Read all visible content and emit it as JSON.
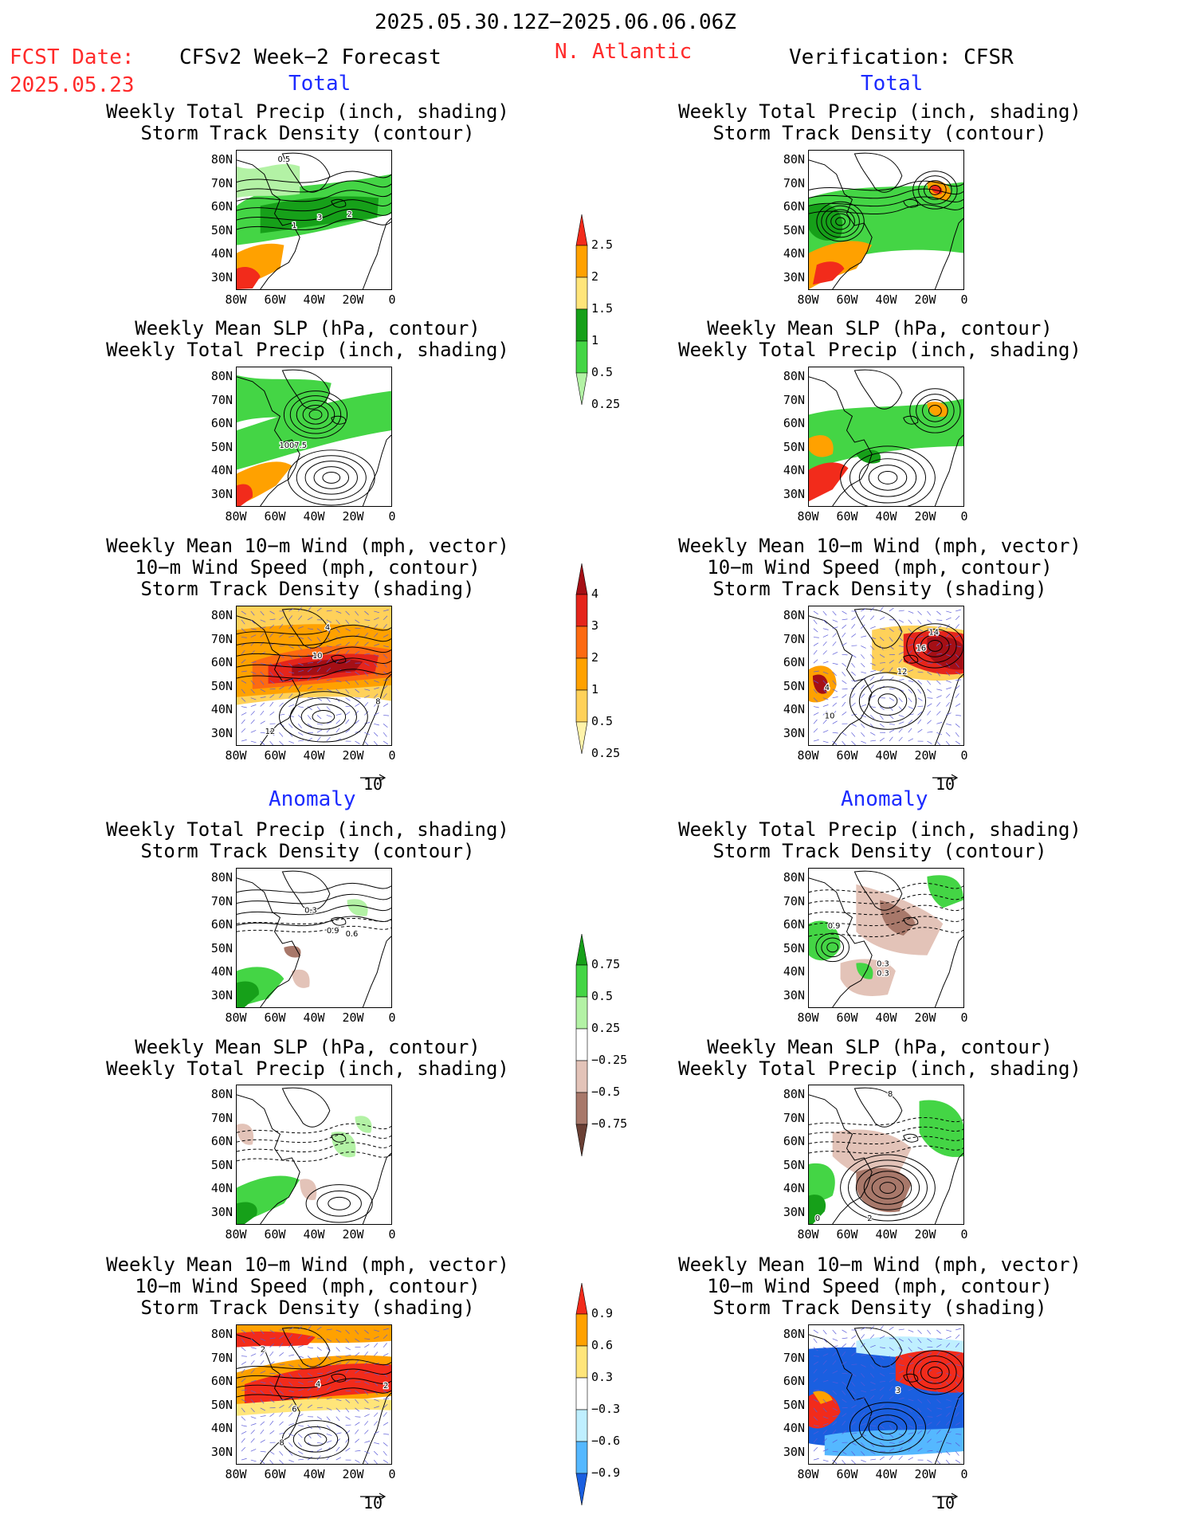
{
  "header": {
    "period": "2025.05.30.12Z−2025.06.06.06Z",
    "fcst_date_label": "FCST Date:",
    "fcst_date": "2025.05.23",
    "model": "CFSv2 Week−2 Forecast",
    "region": "N. Atlantic",
    "verification": "Verification: CFSR"
  },
  "sections": {
    "total": "Total",
    "anomaly": "Anomaly"
  },
  "titles": {
    "precip_track": [
      "Weekly Total Precip (inch, shading)",
      "Storm Track Density (contour)"
    ],
    "slp_precip": [
      "Weekly Mean SLP (hPa, contour)",
      "Weekly Total Precip (inch, shading)"
    ],
    "wind_track": [
      "Weekly Mean 10−m Wind (mph, vector)",
      "10−m Wind Speed (mph, contour)",
      "Storm Track Density (shading)"
    ]
  },
  "axes": {
    "lat_ticks": [
      "80N",
      "70N",
      "60N",
      "50N",
      "40N",
      "30N"
    ],
    "lon_ticks": [
      "80W",
      "60W",
      "40W",
      "20W",
      "0"
    ]
  },
  "vector_ref": "10",
  "map_labels": {
    "fc_total_precip": [
      "0.5",
      "3",
      "2",
      "1"
    ],
    "fc_total_slp": [
      "1007.5"
    ],
    "fc_total_wind": [
      "4",
      "10",
      "8",
      "12"
    ],
    "vf_total_wind": [
      "14",
      "16",
      "12",
      "4",
      "10"
    ],
    "fc_anom_precip": [
      "0.3",
      "0.9",
      "0.6"
    ],
    "vf_anom_precip": [
      "0.9",
      "0.3",
      "0.3"
    ],
    "vf_anom_slp": [
      "8",
      "0",
      "2"
    ],
    "fc_anom_wind": [
      "2",
      "4",
      "6",
      "8",
      "2"
    ],
    "vf_anom_wind": [
      "3"
    ]
  },
  "colorbars": {
    "precip_total": {
      "labels": [
        "2.5",
        "2",
        "1.5",
        "1",
        "0.5",
        "0.25"
      ],
      "colors": [
        "#f22b1b",
        "#ffa100",
        "#ffe57a",
        "#16a019",
        "#44d545",
        "#b3f2a5"
      ]
    },
    "track_total": {
      "labels": [
        "4",
        "3",
        "2",
        "1",
        "0.5",
        "0.25"
      ],
      "colors": [
        "#a50f15",
        "#e5251b",
        "#fd6a11",
        "#ffa100",
        "#ffd15a",
        "#fff3aa"
      ]
    },
    "precip_anom": {
      "labels": [
        "0.75",
        "0.5",
        "0.25",
        "−0.25",
        "−0.5",
        "−0.75"
      ],
      "colors": [
        "#16a019",
        "#44d545",
        "#b3f2a5",
        "#ffffff",
        "#e3c3b8",
        "#a8786a",
        "#6a3f34"
      ]
    },
    "track_anom": {
      "labels": [
        "0.9",
        "0.6",
        "0.3",
        "−0.3",
        "−0.6",
        "−0.9"
      ],
      "colors": [
        "#f22b1b",
        "#ffa100",
        "#ffe57a",
        "#ffffff",
        "#bfefff",
        "#55b8ff",
        "#1a5fe0"
      ]
    }
  }
}
